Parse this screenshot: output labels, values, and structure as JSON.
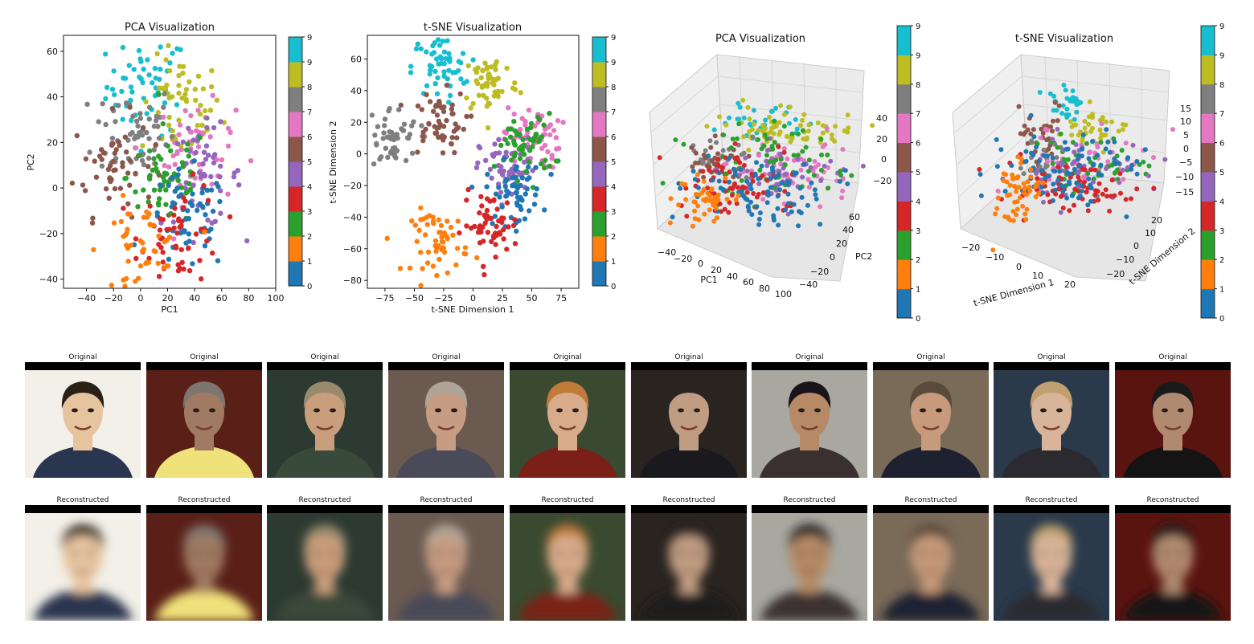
{
  "colors": {
    "classes": [
      "#1f77b4",
      "#ff7f0e",
      "#2ca02c",
      "#d62728",
      "#9467bd",
      "#8c564b",
      "#e377c2",
      "#7f7f7f",
      "#bcbd22",
      "#17becf"
    ]
  },
  "chart_data": [
    {
      "type": "scatter",
      "title": "PCA Visualization",
      "xlabel": "PC1",
      "ylabel": "PC2",
      "xlim": [
        -57,
        100
      ],
      "ylim": [
        -44,
        67
      ],
      "xticks": [
        -40,
        -20,
        0,
        20,
        40,
        60,
        80,
        100
      ],
      "yticks": [
        -40,
        -20,
        0,
        20,
        40,
        60
      ],
      "colorbar_ticks": [
        "0",
        "1",
        "2",
        "3",
        "4",
        "5",
        "6",
        "7",
        "8",
        "9"
      ],
      "cluster_centers": {
        "0": [
          35,
          -15
        ],
        "1": [
          0,
          -28
        ],
        "2": [
          20,
          5
        ],
        "3": [
          30,
          -20
        ],
        "4": [
          45,
          5
        ],
        "5": [
          -20,
          10
        ],
        "6": [
          40,
          15
        ],
        "7": [
          -5,
          25
        ],
        "8": [
          30,
          35
        ],
        "9": [
          5,
          45
        ]
      }
    },
    {
      "type": "scatter",
      "title": "t-SNE Visualization",
      "xlabel": "t-SNE Dimension 1",
      "ylabel": "t-SNE Dimension 2",
      "xlim": [
        -90,
        90
      ],
      "ylim": [
        -85,
        75
      ],
      "xticks": [
        -75,
        -50,
        -25,
        0,
        25,
        50,
        75
      ],
      "yticks": [
        -80,
        -60,
        -40,
        -20,
        0,
        20,
        40,
        60
      ],
      "colorbar_ticks": [
        "0",
        "1",
        "2",
        "3",
        "4",
        "5",
        "6",
        "7",
        "8",
        "9"
      ],
      "cluster_centers": {
        "0": [
          35,
          -25
        ],
        "1": [
          -28,
          -55
        ],
        "2": [
          45,
          5
        ],
        "3": [
          15,
          -45
        ],
        "4": [
          30,
          -10
        ],
        "5": [
          -30,
          20
        ],
        "6": [
          50,
          10
        ],
        "7": [
          -70,
          10
        ],
        "8": [
          15,
          45
        ],
        "9": [
          -28,
          55
        ]
      }
    },
    {
      "type": "scatter",
      "title": "PCA Visualization",
      "xlabel": "PC1",
      "ylabel": "PC2",
      "xticks": [
        "−40",
        "−20",
        "0",
        "20",
        "40",
        "60",
        "80",
        "100"
      ],
      "yticks": [
        "−40",
        "−20",
        "0",
        "20",
        "40",
        "60"
      ],
      "zticks": [
        "−20",
        "0",
        "20",
        "40"
      ],
      "colorbar_ticks": [
        "0",
        "1",
        "2",
        "3",
        "4",
        "5",
        "6",
        "7",
        "8",
        "9"
      ]
    },
    {
      "type": "scatter",
      "title": "t-SNE Visualization",
      "xlabel": "t-SNE Dimension 1",
      "ylabel": "t-SNE Dimension 2",
      "xticks": [
        "−20",
        "−10",
        "0",
        "10",
        "20"
      ],
      "yticks": [
        "−20",
        "−10",
        "0",
        "10",
        "20"
      ],
      "zticks": [
        "−15",
        "−10",
        "−5",
        "0",
        "5",
        "10",
        "15"
      ],
      "colorbar_ticks": [
        "0",
        "1",
        "2",
        "3",
        "4",
        "5",
        "6",
        "7",
        "8",
        "9"
      ]
    }
  ],
  "faces": {
    "original_label": "Original",
    "reconstructed_label": "Reconstructed",
    "items": [
      {
        "bg": "#f2f0e8",
        "skin": "#e7c4a0",
        "hair": "#2a2018",
        "suit": "#2a3550"
      },
      {
        "bg": "#5a2018",
        "skin": "#a07a62",
        "hair": "#7d766e",
        "suit": "#f0e27a"
      },
      {
        "bg": "#2c3a32",
        "skin": "#c99e7c",
        "hair": "#9a8a6c",
        "suit": "#3a4a3a"
      },
      {
        "bg": "#6a5a50",
        "skin": "#c69c82",
        "hair": "#b0a498",
        "suit": "#4a4a58"
      },
      {
        "bg": "#3a4a30",
        "skin": "#d8ab8a",
        "hair": "#c07a3a",
        "suit": "#7a2018"
      },
      {
        "bg": "#2a2420",
        "skin": "#c09c82",
        "hair": "#2a2420",
        "suit": "#1a1a1e"
      },
      {
        "bg": "#a8a8a0",
        "skin": "#b68a66",
        "hair": "#18141a",
        "suit": "#3a3030"
      },
      {
        "bg": "#7a6a58",
        "skin": "#c69a7a",
        "hair": "#5a4a3a",
        "suit": "#1e2230"
      },
      {
        "bg": "#2a3a4a",
        "skin": "#d8b49a",
        "hair": "#c0a070",
        "suit": "#2a2a30"
      },
      {
        "bg": "#5a1410",
        "skin": "#b08a70",
        "hair": "#1a1a1a",
        "suit": "#141414"
      }
    ]
  }
}
